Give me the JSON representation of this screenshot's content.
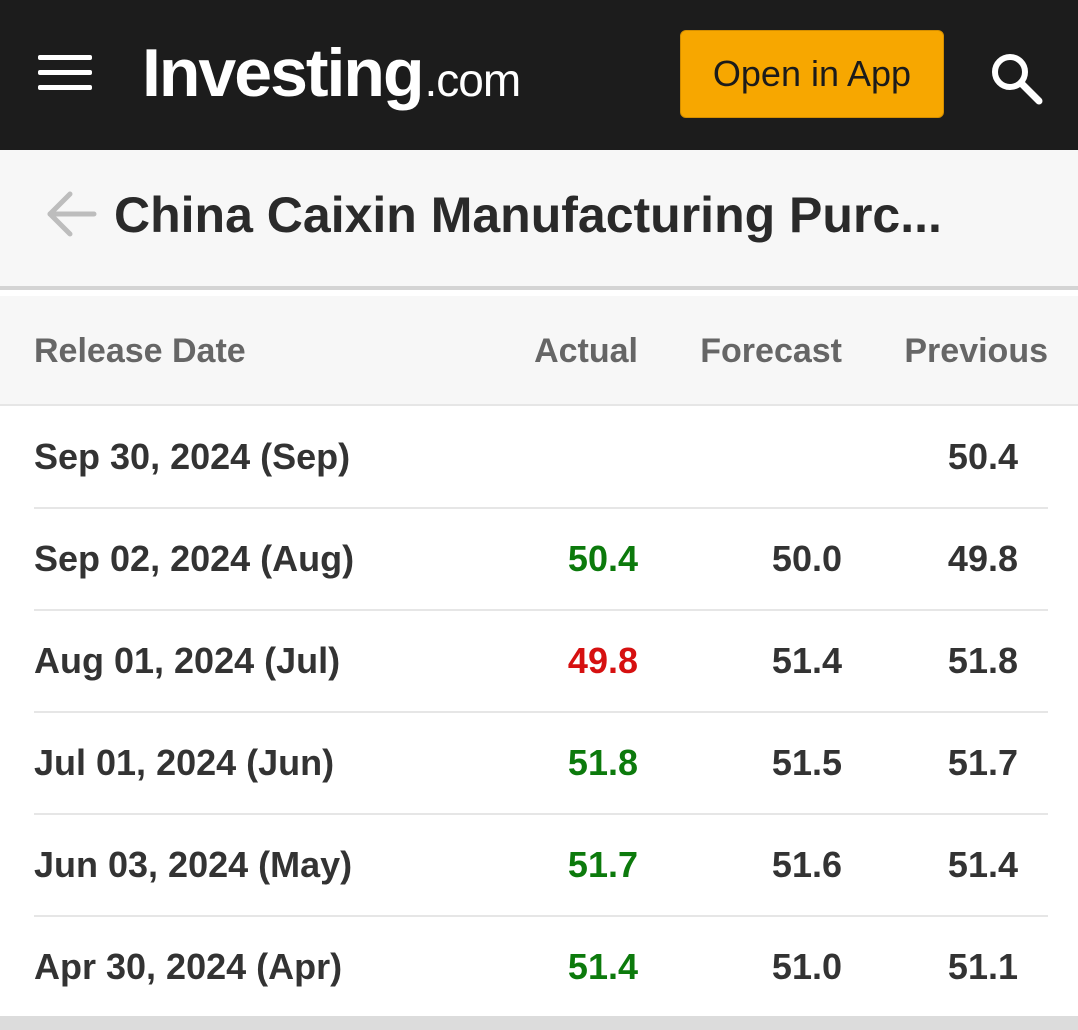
{
  "header": {
    "logo_main": "Investing",
    "logo_suffix": ".com",
    "open_app_label": "Open in App"
  },
  "page": {
    "title": "China Caixin Manufacturing Purc..."
  },
  "table": {
    "columns": {
      "release_date": "Release Date",
      "actual": "Actual",
      "forecast": "Forecast",
      "previous": "Previous"
    },
    "rows": [
      {
        "date": "Sep 30, 2024 (Sep)",
        "actual": "",
        "forecast": "",
        "previous": "50.4"
      },
      {
        "date": "Sep 02, 2024 (Aug)",
        "actual": "50.4",
        "forecast": "50.0",
        "previous": "49.8"
      },
      {
        "date": "Aug 01, 2024 (Jul)",
        "actual": "49.8",
        "forecast": "51.4",
        "previous": "51.8"
      },
      {
        "date": "Jul 01, 2024 (Jun)",
        "actual": "51.8",
        "forecast": "51.5",
        "previous": "51.7"
      },
      {
        "date": "Jun 03, 2024 (May)",
        "actual": "51.7",
        "forecast": "51.6",
        "previous": "51.4"
      },
      {
        "date": "Apr 30, 2024 (Apr)",
        "actual": "51.4",
        "forecast": "51.0",
        "previous": "51.1"
      }
    ]
  },
  "colors": {
    "header_bg": "#1c1c1c",
    "accent": "#f7a700",
    "positive": "#0c7a0c",
    "negative": "#d61010"
  },
  "icons": [
    "menu-icon",
    "search-icon",
    "back-arrow-icon"
  ]
}
